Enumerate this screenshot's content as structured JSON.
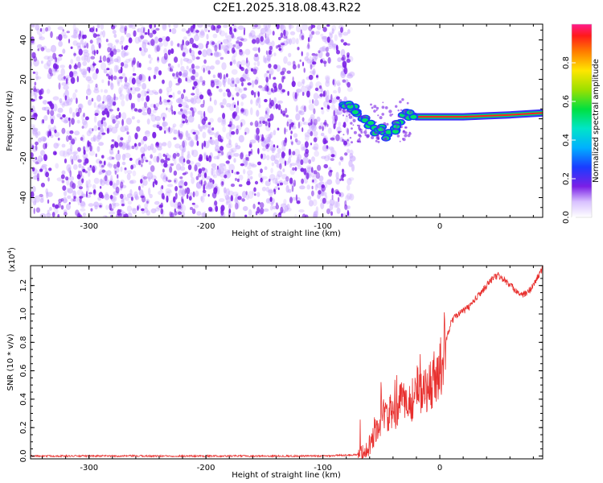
{
  "chart_data": [
    {
      "type": "heatmap",
      "title": "C2E1.2025.318.08.43.R22",
      "xlabel": "Height of straight line (km)",
      "ylabel": "Frequency (Hz)",
      "xlim": [
        -350,
        88
      ],
      "ylim": [
        -50,
        48
      ],
      "xticks": [
        -300,
        -200,
        -100,
        0
      ],
      "xtick_labels": [
        "-300",
        "-200",
        "-100",
        "0"
      ],
      "yticks": [
        -40,
        -20,
        0,
        20,
        40
      ],
      "ytick_labels": [
        "-40",
        "-20",
        "0",
        "20",
        "40"
      ],
      "noise_region_x": [
        -350,
        -78
      ],
      "signal_track": [
        {
          "x": -80,
          "y": 7
        },
        {
          "x": -75,
          "y": 6
        },
        {
          "x": -70,
          "y": 4
        },
        {
          "x": -65,
          "y": 1
        },
        {
          "x": -60,
          "y": -3
        },
        {
          "x": -55,
          "y": -6
        },
        {
          "x": -50,
          "y": -5
        },
        {
          "x": -45,
          "y": -8
        },
        {
          "x": -40,
          "y": -6
        },
        {
          "x": -35,
          "y": -3
        },
        {
          "x": -30,
          "y": 3
        },
        {
          "x": -25,
          "y": 2
        },
        {
          "x": -20,
          "y": 1
        },
        {
          "x": -10,
          "y": 1
        },
        {
          "x": 0,
          "y": 1
        },
        {
          "x": 20,
          "y": 1
        },
        {
          "x": 40,
          "y": 1.5
        },
        {
          "x": 60,
          "y": 2
        },
        {
          "x": 88,
          "y": 3
        }
      ],
      "colorbar": {
        "label": "Normalized spectral amplitude",
        "range": [
          0,
          1
        ],
        "ticks": [
          0.0,
          0.2,
          0.4,
          0.6,
          0.8
        ],
        "tick_labels": [
          "0.0",
          "0.2",
          "0.4",
          "0.6",
          "0.8"
        ]
      }
    },
    {
      "type": "line",
      "xlabel": "Height of straight line (km)",
      "ylabel": "SNR (10 * v/v)",
      "scale_label": "(x10",
      "scale_exponent": "4",
      "scale_close": ")",
      "xlim": [
        -350,
        88
      ],
      "ylim": [
        -0.02,
        1.34
      ],
      "xticks": [
        -300,
        -200,
        -100,
        0
      ],
      "xtick_labels": [
        "-300",
        "-200",
        "-100",
        "0"
      ],
      "yticks": [
        0.0,
        0.2,
        0.4,
        0.6,
        0.8,
        1.0,
        1.2
      ],
      "ytick_labels": [
        "0.0",
        "0.2",
        "0.4",
        "0.6",
        "0.8",
        "1.0",
        "1.2"
      ],
      "series": [
        {
          "name": "SNR",
          "color": "#e8302e",
          "x": [
            -350,
            -300,
            -200,
            -100,
            -70,
            -60,
            -55,
            -50,
            -45,
            -40,
            -35,
            -30,
            -25,
            -20,
            -18,
            -15,
            -10,
            -5,
            0,
            5,
            10,
            15,
            20,
            25,
            30,
            35,
            40,
            45,
            50,
            55,
            60,
            65,
            70,
            75,
            80,
            85,
            88
          ],
          "values": [
            0.0,
            0.0,
            0.0,
            0.0,
            0.01,
            0.06,
            0.18,
            0.25,
            0.3,
            0.28,
            0.35,
            0.4,
            0.38,
            0.45,
            0.6,
            0.4,
            0.5,
            0.55,
            0.6,
            0.8,
            0.95,
            1.0,
            1.02,
            1.05,
            1.1,
            1.15,
            1.2,
            1.25,
            1.27,
            1.24,
            1.2,
            1.17,
            1.13,
            1.15,
            1.2,
            1.28,
            1.32
          ]
        }
      ]
    }
  ],
  "colors": {
    "noise_purple": "#7a1fe6",
    "snr_red": "#e8302e"
  }
}
